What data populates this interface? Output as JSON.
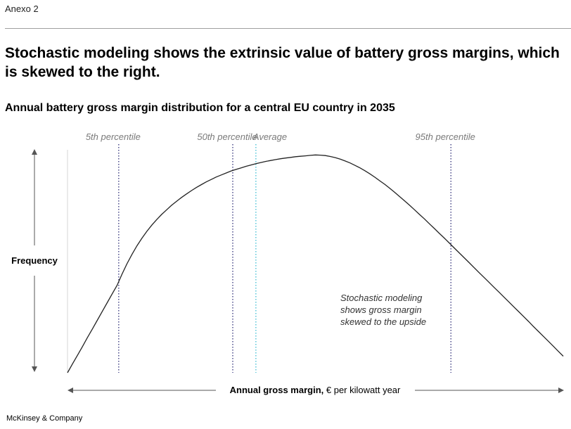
{
  "exhibit_label": "Anexo 2",
  "headline": "Stochastic modeling shows the extrinsic value of battery gross margins, which is skewed to the right.",
  "chart_data": {
    "type": "line",
    "title": "Annual battery gross margin distribution for a central EU country in 2035",
    "xlabel_bold": "Annual gross margin,",
    "xlabel_rest": " € per kilowatt year",
    "ylabel": "Frequency",
    "series": [
      {
        "x": [
          0,
          3,
          6,
          9,
          12,
          15,
          18,
          21,
          24,
          27,
          30,
          33,
          36,
          39,
          42,
          45,
          48,
          51,
          54,
          57,
          60,
          63,
          66,
          69,
          72,
          75,
          78,
          81,
          84,
          87,
          90,
          93,
          96,
          99,
          102,
          105,
          108,
          111,
          114,
          117,
          120,
          123,
          126,
          129,
          132,
          135,
          138,
          141,
          144,
          147,
          150,
          153,
          156,
          159,
          162,
          165,
          168,
          171,
          174,
          177,
          180,
          183,
          186,
          189,
          192,
          195,
          198,
          201,
          204,
          207,
          210,
          213,
          216,
          219,
          222,
          225,
          228,
          231,
          234,
          237,
          240,
          243,
          246,
          249,
          252,
          255,
          258,
          261,
          264,
          267,
          270,
          273,
          276,
          279,
          282,
          285,
          288,
          291,
          294,
          297,
          300
        ],
        "y": [
          0.0,
          0.039,
          0.078,
          0.117,
          0.157,
          0.196,
          0.235,
          0.274,
          0.314,
          0.353,
          0.392,
          0.443,
          0.489,
          0.531,
          0.569,
          0.603,
          0.634,
          0.662,
          0.687,
          0.71,
          0.731,
          0.751,
          0.769,
          0.786,
          0.802,
          0.817,
          0.831,
          0.844,
          0.856,
          0.867,
          0.878,
          0.887,
          0.896,
          0.905,
          0.912,
          0.919,
          0.926,
          0.932,
          0.938,
          0.943,
          0.948,
          0.952,
          0.956,
          0.96,
          0.963,
          0.966,
          0.969,
          0.971,
          0.973,
          0.975,
          0.977,
          0.976,
          0.974,
          0.97,
          0.965,
          0.958,
          0.95,
          0.941,
          0.93,
          0.919,
          0.906,
          0.892,
          0.877,
          0.861,
          0.845,
          0.827,
          0.809,
          0.79,
          0.771,
          0.751,
          0.731,
          0.71,
          0.69,
          0.668,
          0.647,
          0.625,
          0.604,
          0.582,
          0.56,
          0.538,
          0.516,
          0.494,
          0.472,
          0.45,
          0.428,
          0.406,
          0.384,
          0.362,
          0.34,
          0.318,
          0.296,
          0.274,
          0.252,
          0.23,
          0.207,
          0.185,
          0.163,
          0.141,
          0.119,
          0.096,
          0.074
        ]
      }
    ],
    "vlines": [
      {
        "label": "5th percentile",
        "x": 31,
        "color": "#1e1e6e",
        "style": "dotted"
      },
      {
        "label": "50th percentile",
        "x": 100,
        "color": "#1e1e6e",
        "style": "dotted"
      },
      {
        "label": "Average",
        "x": 114,
        "color": "#2bb7cf",
        "style": "dotted"
      },
      {
        "label": "95th percentile",
        "x": 232,
        "color": "#1e1e6e",
        "style": "dotted"
      }
    ],
    "annotation": [
      "Stochastic modeling",
      "shows gross margin",
      "skewed to the upside"
    ],
    "xlim": [
      0,
      300
    ],
    "ylim": [
      0,
      1
    ],
    "grid": false
  },
  "footer": "McKinsey & Company"
}
